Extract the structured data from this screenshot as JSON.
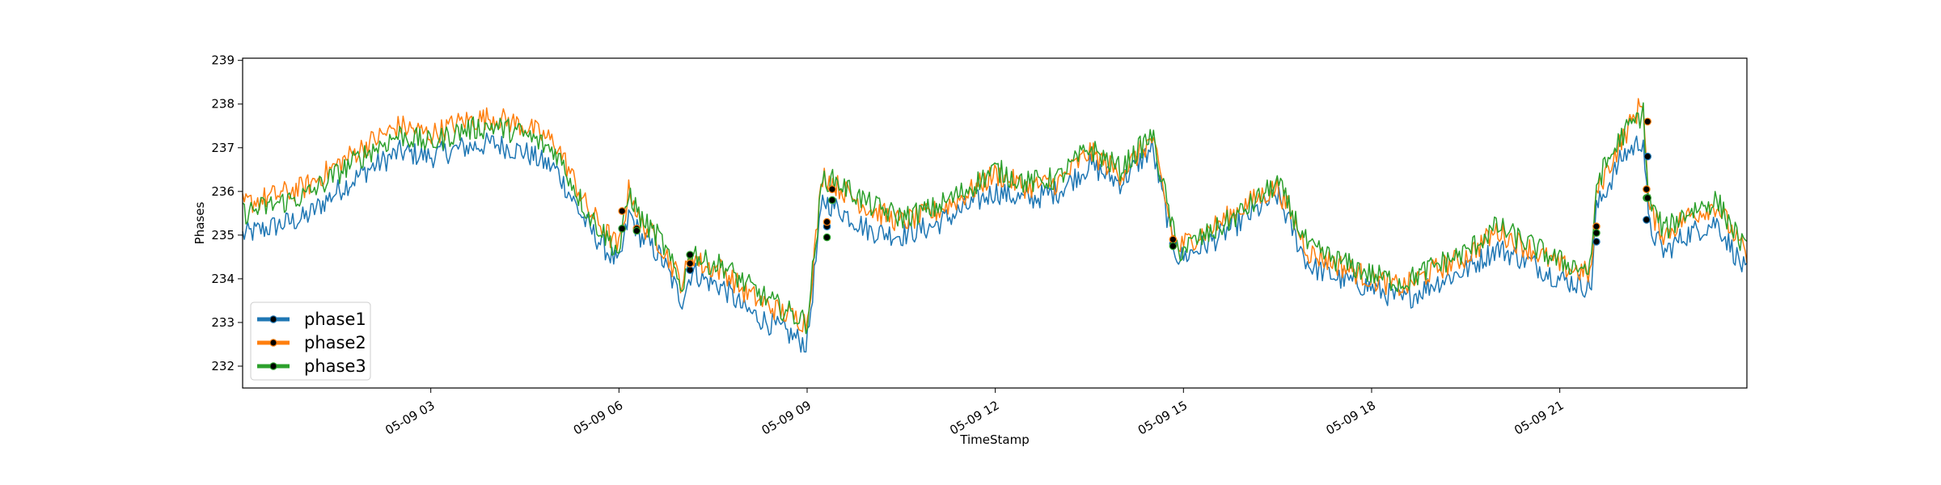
{
  "chart_data": {
    "type": "line",
    "xlabel": "TimeStamp",
    "ylabel": "Phases",
    "xlim": [
      "05-09 00:00",
      "05-09 23:59"
    ],
    "ylim": [
      231.5,
      239.05
    ],
    "x_ticks": [
      "05-09 03",
      "05-09 06",
      "05-09 09",
      "05-09 12",
      "05-09 15",
      "05-09 18",
      "05-09 21"
    ],
    "y_ticks": [
      232,
      233,
      234,
      235,
      236,
      237,
      238,
      239
    ],
    "grid": false,
    "legend_position": "lower-left",
    "series": [
      {
        "name": "phase1",
        "color": "#1f77b4",
        "x": [
          "00:00",
          "00:30",
          "01:00",
          "01:30",
          "02:00",
          "02:30",
          "03:00",
          "03:30",
          "04:00",
          "04:30",
          "05:00",
          "05:30",
          "06:00",
          "06:10",
          "06:20",
          "06:40",
          "07:00",
          "07:10",
          "07:20",
          "07:40",
          "08:00",
          "08:30",
          "09:00",
          "09:10",
          "09:15",
          "09:30",
          "10:00",
          "10:30",
          "11:00",
          "11:30",
          "12:00",
          "12:30",
          "13:00",
          "13:30",
          "14:00",
          "14:30",
          "14:50",
          "14:55",
          "15:00",
          "15:30",
          "16:00",
          "16:30",
          "16:50",
          "17:00",
          "17:30",
          "18:00",
          "18:30",
          "19:00",
          "19:30",
          "20:00",
          "20:30",
          "21:00",
          "21:30",
          "21:35",
          "22:00",
          "22:20",
          "22:25",
          "22:40",
          "23:00",
          "23:30",
          "23:59"
        ],
        "values": [
          235.0,
          235.2,
          235.4,
          236.0,
          236.5,
          236.9,
          236.8,
          237.0,
          237.1,
          236.9,
          236.5,
          235.2,
          234.3,
          235.5,
          235.0,
          234.5,
          233.5,
          234.2,
          234.0,
          233.8,
          233.3,
          232.9,
          232.5,
          234.8,
          235.8,
          235.6,
          235.1,
          235.0,
          235.2,
          235.6,
          236.0,
          235.8,
          236.0,
          236.6,
          236.2,
          237.0,
          234.8,
          234.5,
          234.5,
          234.9,
          235.4,
          235.9,
          234.8,
          234.3,
          234.0,
          233.8,
          233.5,
          233.9,
          234.2,
          234.7,
          234.4,
          234.0,
          233.8,
          235.6,
          236.8,
          237.2,
          235.2,
          234.6,
          235.0,
          235.3,
          234.1
        ]
      },
      {
        "name": "phase2",
        "color": "#ff7f0e",
        "x": [
          "00:00",
          "00:30",
          "01:00",
          "01:30",
          "02:00",
          "02:30",
          "03:00",
          "03:30",
          "04:00",
          "04:30",
          "05:00",
          "05:30",
          "06:00",
          "06:10",
          "06:20",
          "06:40",
          "07:00",
          "07:10",
          "07:20",
          "07:40",
          "08:00",
          "08:30",
          "09:00",
          "09:10",
          "09:15",
          "09:30",
          "10:00",
          "10:30",
          "11:00",
          "11:30",
          "12:00",
          "12:30",
          "13:00",
          "13:30",
          "14:00",
          "14:30",
          "14:50",
          "14:55",
          "15:00",
          "15:30",
          "16:00",
          "16:30",
          "16:50",
          "17:00",
          "17:30",
          "18:00",
          "18:30",
          "19:00",
          "19:30",
          "20:00",
          "20:30",
          "21:00",
          "21:30",
          "21:35",
          "22:00",
          "22:20",
          "22:25",
          "22:40",
          "23:00",
          "23:30",
          "23:59"
        ],
        "values": [
          235.7,
          235.9,
          236.1,
          236.6,
          237.1,
          237.5,
          237.3,
          237.6,
          237.7,
          237.5,
          237.1,
          235.6,
          234.7,
          236.1,
          235.3,
          234.8,
          233.9,
          234.6,
          234.3,
          234.2,
          233.7,
          233.3,
          233.0,
          235.3,
          236.4,
          236.1,
          235.6,
          235.3,
          235.5,
          235.9,
          236.4,
          236.1,
          236.2,
          236.9,
          236.4,
          237.2,
          235.0,
          234.7,
          234.8,
          235.2,
          235.7,
          236.1,
          235.1,
          234.6,
          234.3,
          234.0,
          233.8,
          234.2,
          234.5,
          235.1,
          234.7,
          234.3,
          234.1,
          236.0,
          237.2,
          238.1,
          235.6,
          235.0,
          235.4,
          235.7,
          234.5
        ]
      },
      {
        "name": "phase3",
        "color": "#2ca02c",
        "x": [
          "00:00",
          "00:30",
          "01:00",
          "01:30",
          "02:00",
          "02:30",
          "03:00",
          "03:30",
          "04:00",
          "04:30",
          "05:00",
          "05:30",
          "06:00",
          "06:10",
          "06:20",
          "06:40",
          "07:00",
          "07:10",
          "07:20",
          "07:40",
          "08:00",
          "08:30",
          "09:00",
          "09:10",
          "09:15",
          "09:30",
          "10:00",
          "10:30",
          "11:00",
          "11:30",
          "12:00",
          "12:30",
          "13:00",
          "13:30",
          "14:00",
          "14:30",
          "14:50",
          "14:55",
          "15:00",
          "15:30",
          "16:00",
          "16:30",
          "16:50",
          "17:00",
          "17:30",
          "18:00",
          "18:30",
          "19:00",
          "19:30",
          "20:00",
          "20:30",
          "21:00",
          "21:30",
          "21:35",
          "22:00",
          "22:20",
          "22:25",
          "22:40",
          "23:00",
          "23:30",
          "23:59"
        ],
        "values": [
          235.5,
          235.7,
          235.9,
          236.4,
          236.9,
          237.3,
          237.1,
          237.4,
          237.5,
          237.3,
          236.9,
          235.5,
          234.6,
          236.0,
          235.4,
          234.9,
          233.8,
          234.7,
          234.4,
          234.3,
          233.9,
          233.4,
          233.0,
          235.2,
          236.3,
          236.2,
          235.7,
          235.4,
          235.6,
          236.0,
          236.5,
          236.2,
          236.3,
          237.0,
          236.5,
          237.3,
          235.1,
          234.6,
          234.7,
          235.1,
          235.6,
          236.2,
          235.2,
          234.7,
          234.4,
          234.1,
          233.9,
          234.3,
          234.6,
          235.2,
          234.8,
          234.4,
          234.2,
          236.2,
          237.3,
          237.8,
          235.8,
          235.1,
          235.5,
          235.8,
          234.6
        ]
      }
    ],
    "markers": [
      {
        "x": "06:03",
        "values": [
          235.15,
          235.55,
          235.15
        ]
      },
      {
        "x": "06:17",
        "values": [
          235.15,
          235.15,
          235.1
        ]
      },
      {
        "x": "07:08",
        "values": [
          234.2,
          234.35,
          234.55
        ]
      },
      {
        "x": "09:19",
        "values": [
          235.2,
          235.3,
          234.95
        ]
      },
      {
        "x": "09:24",
        "values": [
          235.8,
          236.05,
          235.8
        ]
      },
      {
        "x": "14:50",
        "values": [
          234.8,
          234.9,
          234.75
        ]
      },
      {
        "x": "21:35",
        "values": [
          234.85,
          235.2,
          235.05
        ]
      },
      {
        "x": "22:23",
        "values": [
          235.35,
          236.05,
          235.85
        ]
      },
      {
        "x": "22:24",
        "values": [
          236.8,
          237.6,
          235.85
        ]
      }
    ]
  }
}
